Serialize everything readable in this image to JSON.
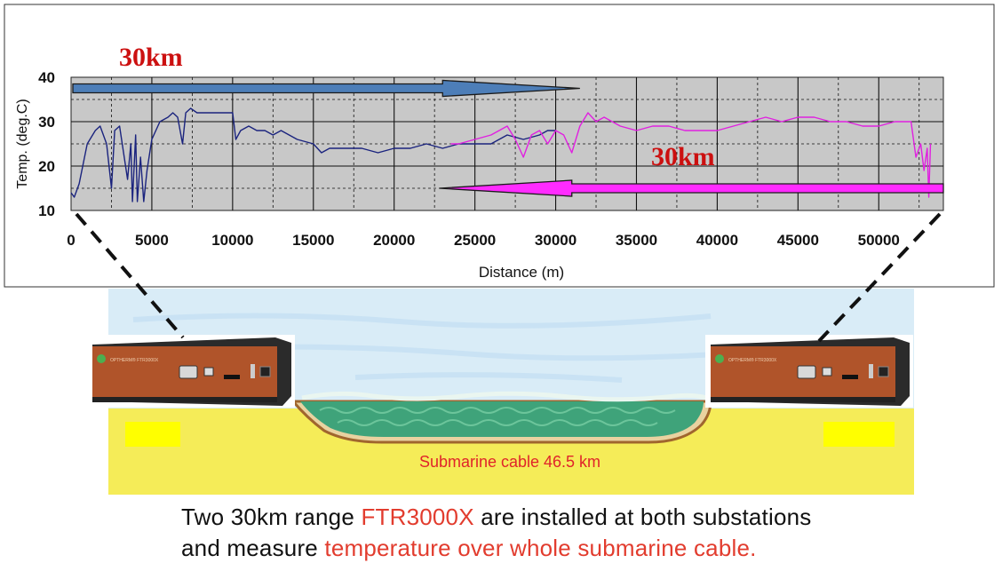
{
  "chart_data": {
    "type": "line",
    "xlabel": "Distance (m)",
    "ylabel": "Temp. (deg.C)",
    "xlim": [
      0,
      54000
    ],
    "ylim": [
      10,
      40
    ],
    "xticks": [
      0,
      5000,
      10000,
      15000,
      20000,
      25000,
      30000,
      35000,
      40000,
      45000,
      50000
    ],
    "yticks": [
      10,
      20,
      30,
      40
    ],
    "grid": true,
    "series": [
      {
        "color": "#1a237e",
        "x": [
          0,
          200,
          500,
          1000,
          1500,
          1800,
          2200,
          2500,
          2700,
          3000,
          3500,
          3700,
          3800,
          4000,
          4100,
          4300,
          4500,
          4700,
          5000,
          5500,
          6000,
          6300,
          6600,
          6900,
          7100,
          7400,
          7800,
          8200,
          8600,
          9000,
          9500,
          10000,
          10200,
          10500,
          11000,
          11500,
          12000,
          12500,
          13000,
          14000,
          15000,
          15500,
          16000,
          17000,
          18000,
          19000,
          20000,
          21000,
          22000,
          23000,
          24000,
          25000,
          26000,
          27000,
          28000,
          29000,
          29500,
          30000
        ],
        "y": [
          14,
          13,
          16,
          25,
          28,
          29,
          25,
          15,
          28,
          29,
          17,
          25,
          12,
          27,
          12,
          22,
          12,
          19,
          26,
          30,
          31,
          32,
          31,
          25,
          32,
          33,
          32,
          32,
          32,
          32,
          32,
          32,
          26,
          28,
          29,
          28,
          28,
          27,
          28,
          26,
          25,
          23,
          24,
          24,
          24,
          23,
          24,
          24,
          25,
          24,
          25,
          25,
          25,
          27,
          26,
          27,
          28,
          28
        ]
      },
      {
        "color": "#e020e0",
        "x": [
          23500,
          24000,
          25000,
          26000,
          26500,
          27000,
          27500,
          28000,
          28500,
          29000,
          29500,
          30000,
          30500,
          31000,
          31500,
          32000,
          32500,
          33000,
          34000,
          35000,
          36000,
          37000,
          38000,
          39000,
          40000,
          41000,
          42000,
          43000,
          44000,
          45000,
          46000,
          47000,
          48000,
          49000,
          50000,
          51000,
          52000,
          52300,
          52600,
          52800,
          53000,
          53100,
          53200
        ],
        "y": [
          25,
          25,
          26,
          27,
          28,
          29,
          26,
          22,
          27,
          28,
          25,
          28,
          27,
          23,
          29,
          32,
          30,
          31,
          29,
          28,
          29,
          29,
          28,
          28,
          28,
          29,
          30,
          31,
          30,
          31,
          31,
          30,
          30,
          29,
          29,
          30,
          30,
          22,
          25,
          19,
          24,
          13,
          25
        ]
      }
    ]
  },
  "annotations": {
    "left_range_label": "30km",
    "right_range_label": "30km",
    "cable_label": "Submarine cable 46.5 km"
  },
  "devices": {
    "left_face_text": "OPTHERM® FTR3000X",
    "right_face_text": "OPTHERM® FTR3000X"
  },
  "caption": {
    "line1_prefix": "Two 30km range ",
    "line1_highlight": "FTR3000X",
    "line1_suffix": " are installed at both substations",
    "line2_prefix": "and measure ",
    "line2_highlight": "temperature over whole submarine cable."
  },
  "colors": {
    "plot_bg": "#c8c8c8",
    "blue_series": "#1a237e",
    "magenta_series": "#e020e0",
    "blue_arrow": "#4d7eb8",
    "magenta_arrow": "#ff2bff",
    "range_text": "#cc1010",
    "cable_text": "#e0242a",
    "sky": "#d9ecf7",
    "sea": "#3fa37a",
    "sand": "#f5ec58",
    "device_face": "#b0542a"
  }
}
